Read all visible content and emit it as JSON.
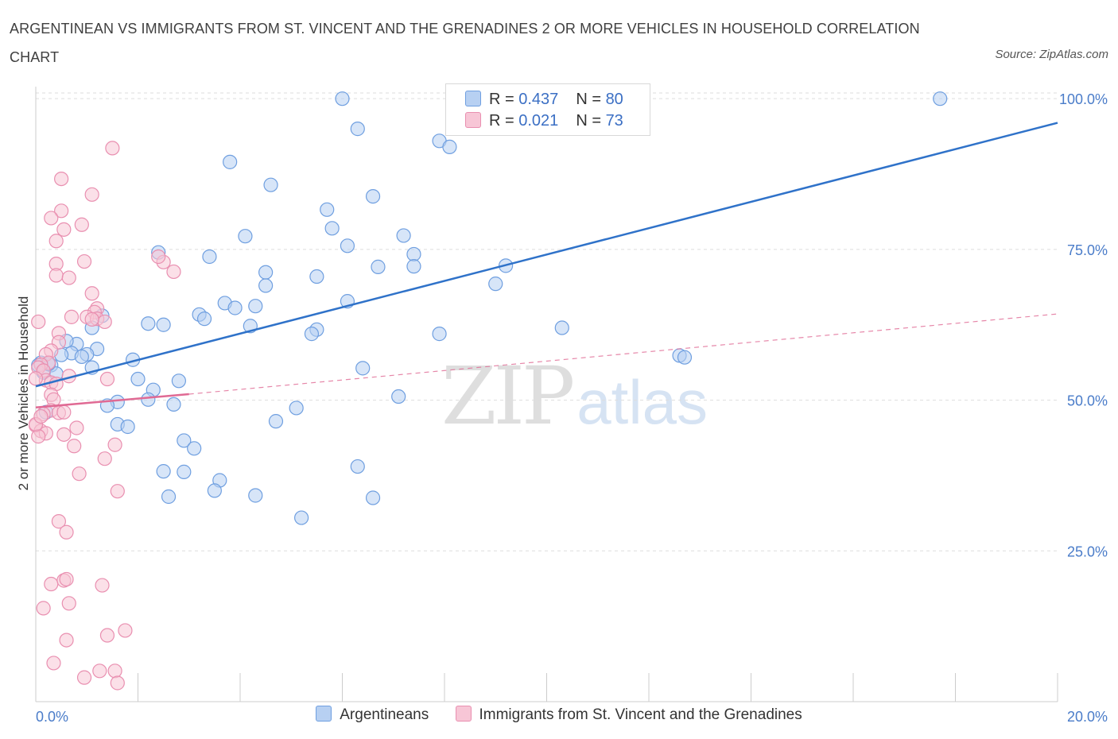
{
  "title": "ARGENTINEAN VS IMMIGRANTS FROM ST. VINCENT AND THE GRENADINES 2 OR MORE VEHICLES IN HOUSEHOLD CORRELATION CHART",
  "source": "Source: ZipAtlas.com",
  "watermark": {
    "zip": "ZIP",
    "atlas": "atlas"
  },
  "colors": {
    "blue_fill": "#b7d0f2",
    "blue_stroke": "#6f9fe0",
    "blue_line": "#2f72c9",
    "pink_fill": "#f7c6d6",
    "pink_stroke": "#e98fb0",
    "pink_line": "#e06a94",
    "axis_text": "#4a7cc9",
    "grid": "#dddddd"
  },
  "legend_top": [
    {
      "r_label": "R = ",
      "r_value": "0.437",
      "n_label": "N = ",
      "n_value": "80"
    },
    {
      "r_label": "R = ",
      "r_value": "0.021",
      "n_label": "N = ",
      "n_value": "73"
    }
  ],
  "chart_data": {
    "type": "scatter",
    "title": "ARGENTINEAN VS IMMIGRANTS FROM ST. VINCENT AND THE GRENADINES 2 OR MORE VEHICLES IN HOUSEHOLD CORRELATION CHART",
    "xlabel": "",
    "ylabel": "2 or more Vehicles in Household",
    "xlim": [
      0,
      20
    ],
    "ylim": [
      0,
      102
    ],
    "x_tick_labels": [
      "0.0%",
      "20.0%"
    ],
    "y_ticks": [
      25,
      50,
      75,
      100
    ],
    "y_tick_labels": [
      "25.0%",
      "50.0%",
      "75.0%",
      "100.0%"
    ],
    "grid": true,
    "legend_placement": "top-center and bottom",
    "series": [
      {
        "name": "Argentineans",
        "color": "#6f9fe0",
        "r": 0.437,
        "n": 80,
        "trend": {
          "x": [
            0,
            20
          ],
          "y": [
            52.3,
            96.0
          ],
          "style": "solid"
        },
        "points": [
          [
            6.0,
            100.0
          ],
          [
            17.7,
            100.0
          ],
          [
            6.3,
            95.0
          ],
          [
            7.9,
            93.0
          ],
          [
            8.1,
            92.0
          ],
          [
            3.8,
            89.5
          ],
          [
            4.6,
            85.7
          ],
          [
            6.6,
            83.8
          ],
          [
            5.7,
            81.6
          ],
          [
            5.8,
            78.5
          ],
          [
            4.1,
            77.2
          ],
          [
            7.2,
            77.3
          ],
          [
            6.1,
            75.6
          ],
          [
            2.4,
            74.5
          ],
          [
            3.4,
            73.8
          ],
          [
            7.4,
            74.2
          ],
          [
            6.7,
            72.1
          ],
          [
            7.4,
            72.2
          ],
          [
            9.2,
            72.3
          ],
          [
            4.5,
            71.2
          ],
          [
            5.5,
            70.5
          ],
          [
            9.0,
            69.3
          ],
          [
            4.5,
            69.0
          ],
          [
            6.1,
            66.4
          ],
          [
            3.7,
            66.1
          ],
          [
            3.9,
            65.3
          ],
          [
            4.3,
            65.6
          ],
          [
            3.2,
            64.2
          ],
          [
            3.3,
            63.5
          ],
          [
            1.3,
            64.0
          ],
          [
            2.2,
            62.7
          ],
          [
            2.5,
            62.5
          ],
          [
            4.2,
            62.3
          ],
          [
            5.5,
            61.7
          ],
          [
            5.4,
            61.0
          ],
          [
            10.3,
            62.0
          ],
          [
            7.9,
            61.0
          ],
          [
            1.1,
            62.0
          ],
          [
            1.2,
            58.5
          ],
          [
            0.8,
            59.3
          ],
          [
            0.6,
            59.8
          ],
          [
            0.7,
            57.8
          ],
          [
            1.0,
            57.6
          ],
          [
            0.9,
            57.2
          ],
          [
            0.5,
            57.5
          ],
          [
            1.9,
            56.7
          ],
          [
            12.6,
            57.4
          ],
          [
            12.7,
            57.1
          ],
          [
            0.3,
            55.8
          ],
          [
            0.1,
            56.2
          ],
          [
            1.1,
            55.4
          ],
          [
            6.4,
            55.3
          ],
          [
            0.4,
            54.4
          ],
          [
            2.0,
            53.5
          ],
          [
            2.8,
            53.2
          ],
          [
            2.3,
            51.7
          ],
          [
            7.1,
            50.6
          ],
          [
            2.2,
            50.1
          ],
          [
            1.6,
            49.7
          ],
          [
            1.4,
            49.1
          ],
          [
            2.7,
            49.3
          ],
          [
            5.1,
            48.7
          ],
          [
            0.2,
            48.0
          ],
          [
            1.6,
            46.0
          ],
          [
            1.8,
            45.6
          ],
          [
            4.7,
            46.5
          ],
          [
            2.9,
            43.3
          ],
          [
            3.1,
            42.0
          ],
          [
            6.3,
            39.0
          ],
          [
            2.5,
            38.2
          ],
          [
            2.9,
            38.1
          ],
          [
            3.6,
            36.7
          ],
          [
            3.5,
            35.0
          ],
          [
            2.6,
            34.0
          ],
          [
            4.3,
            34.2
          ],
          [
            6.6,
            33.8
          ],
          [
            5.2,
            30.5
          ],
          [
            0.05,
            55.8
          ],
          [
            0.15,
            54.6
          ],
          [
            0.25,
            56.0
          ]
        ]
      },
      {
        "name": "Immigrants from St. Vincent and the Grenadines",
        "color": "#e98fb0",
        "r": 0.021,
        "n": 73,
        "trend": {
          "x": [
            0,
            3.0
          ],
          "y": [
            48.8,
            51.0
          ],
          "style": "solid",
          "extended": {
            "x": [
              3.0,
              20
            ],
            "y": [
              51.0,
              64.3
            ],
            "style": "dashed"
          }
        },
        "points": [
          [
            1.5,
            91.8
          ],
          [
            0.5,
            86.7
          ],
          [
            1.1,
            84.1
          ],
          [
            0.5,
            81.4
          ],
          [
            0.3,
            80.2
          ],
          [
            0.9,
            79.1
          ],
          [
            0.55,
            78.3
          ],
          [
            0.4,
            76.4
          ],
          [
            0.95,
            73.0
          ],
          [
            2.5,
            72.9
          ],
          [
            0.4,
            72.6
          ],
          [
            2.4,
            73.8
          ],
          [
            2.7,
            71.3
          ],
          [
            0.4,
            70.7
          ],
          [
            0.65,
            70.3
          ],
          [
            1.1,
            67.7
          ],
          [
            1.2,
            65.2
          ],
          [
            1.15,
            64.6
          ],
          [
            0.7,
            63.8
          ],
          [
            1.0,
            63.8
          ],
          [
            1.2,
            63.5
          ],
          [
            0.05,
            63.0
          ],
          [
            1.35,
            63.0
          ],
          [
            1.1,
            63.4
          ],
          [
            0.45,
            61.1
          ],
          [
            0.45,
            59.6
          ],
          [
            0.3,
            58.2
          ],
          [
            0.2,
            57.6
          ],
          [
            0.25,
            56.2
          ],
          [
            0.1,
            55.9
          ],
          [
            0.05,
            55.4
          ],
          [
            0.15,
            54.9
          ],
          [
            0.65,
            54.0
          ],
          [
            0.2,
            53.3
          ],
          [
            0.3,
            52.9
          ],
          [
            0.4,
            52.7
          ],
          [
            1.4,
            53.5
          ],
          [
            0.0,
            53.6
          ],
          [
            0.3,
            50.9
          ],
          [
            0.35,
            50.1
          ],
          [
            0.3,
            48.3
          ],
          [
            0.45,
            47.9
          ],
          [
            0.55,
            48.0
          ],
          [
            0.15,
            47.7
          ],
          [
            0.0,
            45.8
          ],
          [
            0.1,
            44.9
          ],
          [
            0.2,
            44.5
          ],
          [
            0.8,
            45.4
          ],
          [
            0.55,
            44.3
          ],
          [
            0.05,
            44.0
          ],
          [
            1.55,
            42.6
          ],
          [
            0.75,
            42.4
          ],
          [
            1.35,
            40.3
          ],
          [
            0.85,
            37.8
          ],
          [
            1.6,
            34.9
          ],
          [
            0.45,
            29.9
          ],
          [
            0.6,
            28.1
          ],
          [
            0.55,
            20.1
          ],
          [
            0.6,
            20.3
          ],
          [
            0.3,
            19.5
          ],
          [
            1.3,
            19.3
          ],
          [
            0.65,
            16.3
          ],
          [
            0.15,
            15.5
          ],
          [
            1.75,
            11.8
          ],
          [
            1.4,
            11.0
          ],
          [
            0.6,
            10.2
          ],
          [
            0.35,
            6.4
          ],
          [
            1.25,
            5.1
          ],
          [
            1.55,
            5.1
          ],
          [
            0.95,
            4.0
          ],
          [
            1.6,
            3.1
          ],
          [
            0.0,
            46.0
          ],
          [
            0.1,
            47.3
          ]
        ]
      }
    ]
  }
}
